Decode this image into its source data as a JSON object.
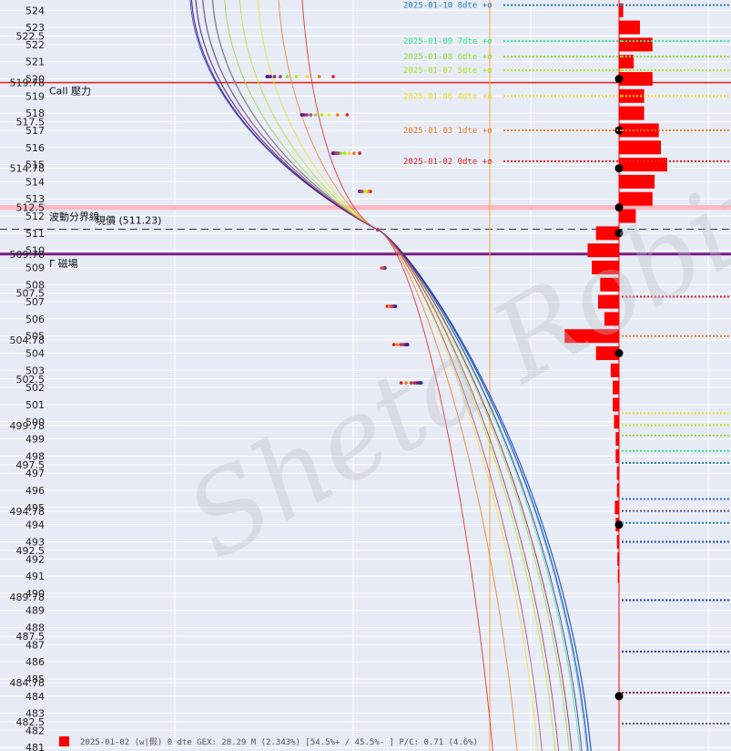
{
  "chart_data": {
    "type": "line",
    "ylim": [
      480.8,
      524.6
    ],
    "y_ticks": [
      "524",
      "523",
      "522.5",
      "522",
      "521",
      "520",
      "519.78",
      "519",
      "518",
      "517.5",
      "517",
      "516",
      "515",
      "514.78",
      "514",
      "513",
      "512.5",
      "512",
      "511",
      "510",
      "509.78",
      "509",
      "508",
      "507.5",
      "507",
      "506",
      "505",
      "504.78",
      "504",
      "503",
      "502.5",
      "502",
      "501",
      "500",
      "499.78",
      "499",
      "498",
      "497.5",
      "497",
      "496",
      "495",
      "494.78",
      "494",
      "493",
      "492.5",
      "492",
      "491",
      "490",
      "489.78",
      "489",
      "488",
      "487.5",
      "487",
      "486",
      "485",
      "484.78",
      "484",
      "483",
      "482.5",
      "482",
      "481"
    ],
    "expiries": [
      {
        "label": "2025-01-10 8dte +σ",
        "color": "#2c7fb8",
        "level": 524.3
      },
      {
        "label": "2025-01-09 7dte +σ",
        "color": "#2ee88a",
        "level": 522.2
      },
      {
        "label": "2025-01-08 6dte +σ",
        "color": "#8fdc32",
        "level": 521.3
      },
      {
        "label": "2025-01-07 5dte +σ",
        "color": "#b5e61d",
        "level": 520.5
      },
      {
        "label": "2025-01-06 4dte +σ",
        "color": "#f0e020",
        "level": 519.0
      },
      {
        "label": "2025-01-03 1dte +σ",
        "color": "#f07a1a",
        "level": 517.0
      },
      {
        "label": "2025-01-02 0dte +σ",
        "color": "#e02020",
        "level": 515.2
      }
    ],
    "annotations": {
      "call_wall": {
        "label": "Call 壓力",
        "value": 519.78
      },
      "vol_trigger": {
        "label": "波動分界線",
        "value": 512.5
      },
      "spot": {
        "label": "現價 (511.23)",
        "value": 511.23
      },
      "put_wall": {
        "label": "Γ 磁場",
        "value": 509.78
      }
    },
    "gex_bars": [
      {
        "strike": 524,
        "value": 0.1
      },
      {
        "strike": 523,
        "value": 0.5
      },
      {
        "strike": 522,
        "value": 0.8
      },
      {
        "strike": 521,
        "value": 0.35
      },
      {
        "strike": 520,
        "value": 0.8
      },
      {
        "strike": 519,
        "value": 0.6
      },
      {
        "strike": 518,
        "value": 0.6
      },
      {
        "strike": 517,
        "value": 0.95
      },
      {
        "strike": 516,
        "value": 1.0
      },
      {
        "strike": 515,
        "value": 1.15
      },
      {
        "strike": 514,
        "value": 0.85
      },
      {
        "strike": 513,
        "value": 0.8
      },
      {
        "strike": 512,
        "value": 0.4
      },
      {
        "strike": 511,
        "value": -0.55
      },
      {
        "strike": 510,
        "value": -0.75
      },
      {
        "strike": 509,
        "value": -0.65
      },
      {
        "strike": 508,
        "value": -0.45
      },
      {
        "strike": 507,
        "value": -0.5
      },
      {
        "strike": 506,
        "value": -0.35
      },
      {
        "strike": 505,
        "value": -1.3
      },
      {
        "strike": 504,
        "value": -0.55
      },
      {
        "strike": 503,
        "value": -0.2
      },
      {
        "strike": 502,
        "value": -0.15
      },
      {
        "strike": 501,
        "value": -0.15
      },
      {
        "strike": 500,
        "value": -0.12
      },
      {
        "strike": 499,
        "value": -0.08
      },
      {
        "strike": 498,
        "value": -0.08
      },
      {
        "strike": 497,
        "value": -0.05
      },
      {
        "strike": 496,
        "value": -0.05
      },
      {
        "strike": 495,
        "value": -0.1
      },
      {
        "strike": 494,
        "value": -0.08
      },
      {
        "strike": 493,
        "value": -0.05
      },
      {
        "strike": 492,
        "value": -0.04
      },
      {
        "strike": 491,
        "value": -0.03
      }
    ],
    "gex_dots": [
      520,
      517,
      514.78,
      512.5,
      511,
      504,
      494,
      484
    ],
    "right_dotted": [
      {
        "y": 524.3,
        "color": "#2c7fb8"
      },
      {
        "y": 522.2,
        "color": "#2ee88a"
      },
      {
        "y": 521.3,
        "color": "#8fdc32"
      },
      {
        "y": 520.5,
        "color": "#b5e61d"
      },
      {
        "y": 519.0,
        "color": "#f0e020"
      },
      {
        "y": 517.0,
        "color": "#f07a1a"
      },
      {
        "y": 515.2,
        "color": "#e02020"
      },
      {
        "y": 507.3,
        "color": "#e02020"
      },
      {
        "y": 505.0,
        "color": "#f07a1a"
      },
      {
        "y": 500.5,
        "color": "#f0e020"
      },
      {
        "y": 499.8,
        "color": "#b5e61d"
      },
      {
        "y": 499.2,
        "color": "#8fdc32"
      },
      {
        "y": 498.3,
        "color": "#2ee88a"
      },
      {
        "y": 497.6,
        "color": "#2c7fb8"
      },
      {
        "y": 495.5,
        "color": "#3a6fd8"
      },
      {
        "y": 494.8,
        "color": "#555577"
      },
      {
        "y": 494.1,
        "color": "#2c7fb8"
      },
      {
        "y": 493.0,
        "color": "#1f3fd0"
      },
      {
        "y": 489.6,
        "color": "#1f3fd0"
      },
      {
        "y": 486.6,
        "color": "#20309a"
      },
      {
        "y": 484.2,
        "color": "#8a1060"
      },
      {
        "y": 482.4,
        "color": "#555577"
      }
    ],
    "watermark": "Sheta Robin",
    "footer": "2025-01-02 (w|假)   0 dte   GEX: 28.29 M (2.343%)   [54.5%+ / 45.5%- ]   P/C: 0.71   (4.6%)"
  }
}
